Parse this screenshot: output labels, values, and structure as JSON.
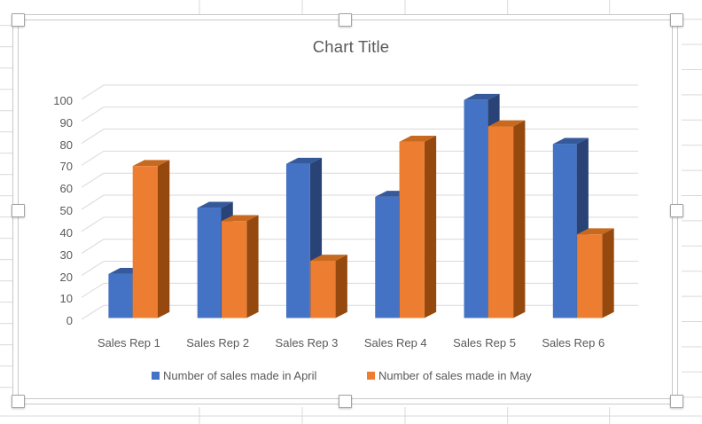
{
  "chart_data": {
    "type": "bar",
    "subtype": "3d_clustered_column",
    "title": "Chart Title",
    "categories": [
      "Sales Rep 1",
      "Sales Rep 2",
      "Sales Rep 3",
      "Sales Rep 4",
      "Sales Rep 5",
      "Sales Rep 6"
    ],
    "series": [
      {
        "name": "Number of sales made in April",
        "color": "#4472C4",
        "color_top": "#35599B",
        "color_side": "#2A4377",
        "values": [
          20,
          50,
          70,
          55,
          99,
          79
        ]
      },
      {
        "name": "Number of sales made in May",
        "color": "#ED7D31",
        "color_top": "#C76A20",
        "color_side": "#96490F",
        "values": [
          69,
          44,
          26,
          80,
          87,
          38
        ]
      }
    ],
    "xlabel": "",
    "ylabel": "",
    "ylim": [
      0,
      100
    ],
    "y_ticks": [
      0,
      10,
      20,
      30,
      40,
      50,
      60,
      70,
      80,
      90,
      100
    ],
    "grid": true,
    "legend_position": "bottom"
  },
  "colors": {
    "axis_text": "#595959",
    "title_text": "#595959",
    "plot_gridline": "#D9D9D9",
    "sheet_gridline": "#D9D9D9",
    "frame_border": "#C9C9C9",
    "handle_border": "#A3A3A3"
  },
  "selection": {
    "state": "chart-selected",
    "handles": [
      "nw",
      "n",
      "ne",
      "w",
      "e",
      "sw",
      "s",
      "se"
    ]
  }
}
